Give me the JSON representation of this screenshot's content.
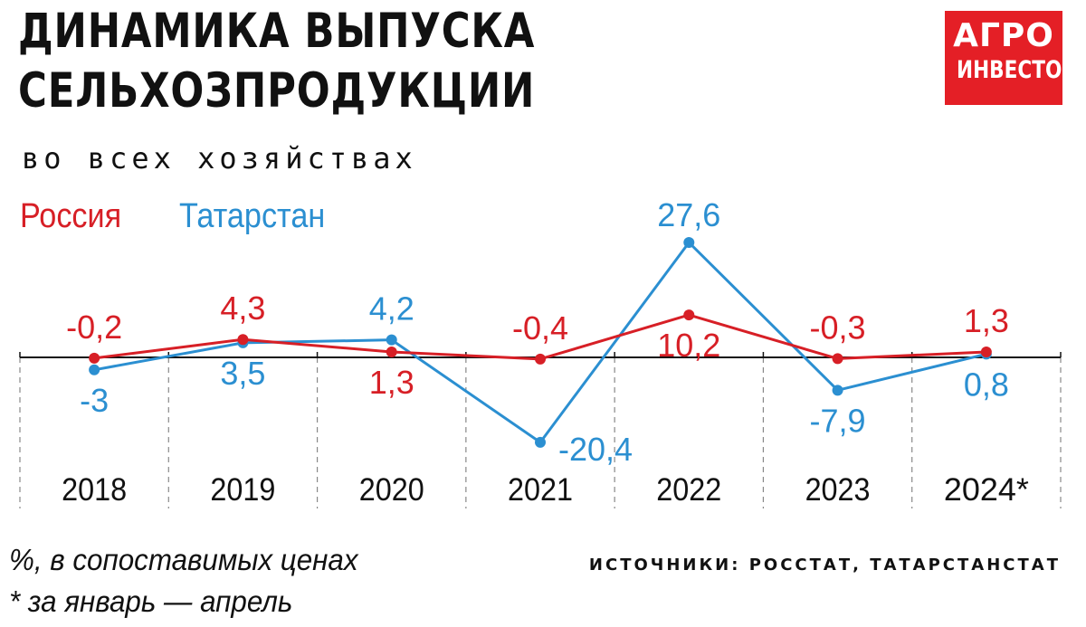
{
  "header": {
    "title_line1": "ДИНАМИКА ВЫПУСКА",
    "title_line2": "СЕЛЬХОЗПРОДУКЦИИ",
    "subtitle": "во всех хозяйствах"
  },
  "logo": {
    "line1": "АГРО",
    "line2": "ИНВЕСТОР",
    "color": "#e41f26"
  },
  "footer": {
    "note1": "%, в сопоставимых ценах",
    "note2": "* за январь — апрель",
    "source": "ИСТОЧНИКИ: РОССТАТ, ТАТАРСТАНСТАТ"
  },
  "chart_data": {
    "type": "line",
    "title": "ДИНАМИКА ВЫПУСКА СЕЛЬХОЗПРОДУКЦИИ",
    "subtitle": "во всех хозяйствах",
    "ylabel": "%, в сопоставимых ценах",
    "xlabel": "",
    "categories": [
      "2018",
      "2019",
      "2020",
      "2021",
      "2022",
      "2023",
      "2024*"
    ],
    "ylim": [
      -22,
      30
    ],
    "grid": false,
    "legend_position": "top-left",
    "series": [
      {
        "name": "Россия",
        "color": "#d71f26",
        "values": [
          -0.2,
          4.3,
          1.3,
          -0.4,
          10.2,
          -0.3,
          1.3
        ],
        "labels": [
          "-0,2",
          "4,3",
          "1,3",
          "-0,4",
          "10,2",
          "-0,3",
          "1,3"
        ]
      },
      {
        "name": "Татарстан",
        "color": "#2b8fd1",
        "values": [
          -3,
          3.5,
          4.2,
          -20.4,
          27.6,
          -7.9,
          0.8
        ],
        "labels": [
          "-3",
          "3,5",
          "4,2",
          "-20,4",
          "27,6",
          "-7,9",
          "0,8"
        ]
      }
    ]
  }
}
